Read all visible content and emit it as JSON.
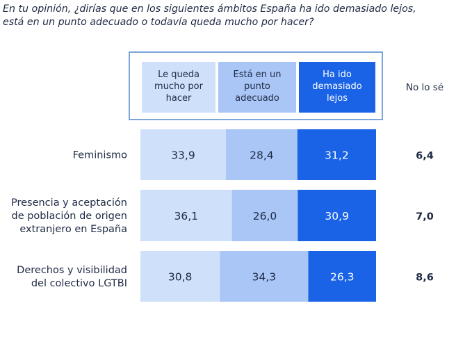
{
  "title": {
    "line1": "En tu opinión, ¿dirías que en los siguientes ámbitos España ha ido demasiado lejos,",
    "line2": "está en un punto adecuado o todavía queda mucho por hacer?"
  },
  "colors": {
    "series": [
      "#cfe0fb",
      "#a9c6f6",
      "#1a63e6"
    ],
    "frame": "#5b8fd1",
    "text": "#1f2a44"
  },
  "chart_data": {
    "type": "bar",
    "orientation": "horizontal",
    "stacked": true,
    "categories": [
      [
        "Feminismo"
      ],
      [
        "Presencia y aceptación",
        "de población de origen",
        "extranjero en España"
      ],
      [
        "Derechos y visibilidad",
        "del colectivo LGTBI"
      ]
    ],
    "series": [
      {
        "name": [
          "Le queda",
          "mucho por",
          "hacer"
        ],
        "values": [
          33.9,
          36.1,
          30.8
        ],
        "labels": [
          "33,9",
          "36,1",
          "30,8"
        ]
      },
      {
        "name": [
          "Está en un",
          "punto",
          "adecuado"
        ],
        "values": [
          28.4,
          26.0,
          34.3
        ],
        "labels": [
          "28,4",
          "26,0",
          "34,3"
        ]
      },
      {
        "name": [
          "Ha ido",
          "demasiado",
          "lejos"
        ],
        "values": [
          31.2,
          30.9,
          26.3
        ],
        "labels": [
          "31,2",
          "30,9",
          "26,3"
        ]
      }
    ],
    "extra_column": {
      "name": "No lo sé",
      "values": [
        6.4,
        7.0,
        8.6
      ],
      "labels": [
        "6,4",
        "7,0",
        "8,6"
      ]
    },
    "legend_position": "top",
    "grid": false
  }
}
